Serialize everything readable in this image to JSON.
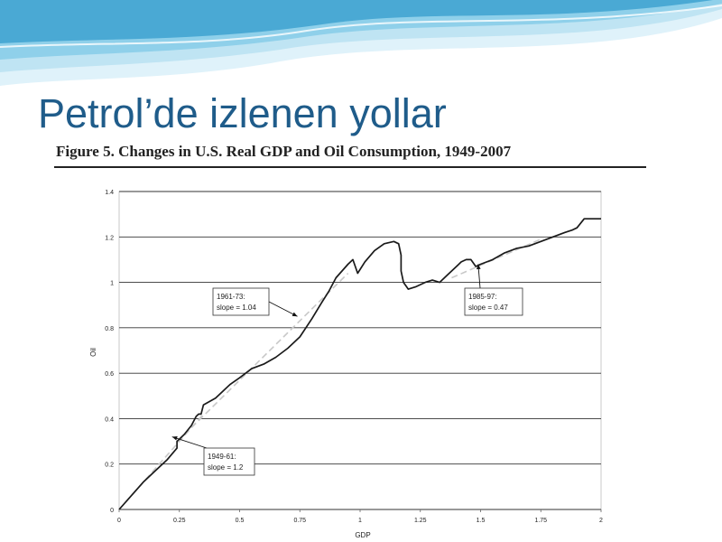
{
  "slide": {
    "title": "Petrol’de izlenen yollar"
  },
  "figure": {
    "caption": "Figure 5. Changes in U.S. Real GDP and Oil Consumption, 1949-2007"
  },
  "colors": {
    "title": "#1f5c8a",
    "wave_dark": "#4aa9d4",
    "wave_light": "#bfe4f3",
    "series": "#1a1a1a",
    "trend": "#c8c8c8",
    "grid": "#333333"
  },
  "chart_data": {
    "type": "line",
    "xlabel": "GDP",
    "ylabel": "Oil",
    "xlim": [
      0,
      2
    ],
    "ylim": [
      0,
      1.4
    ],
    "x_ticks": [
      "0",
      "0.25",
      "0.5",
      "0.75",
      "1",
      "1.25",
      "1.5",
      "1.75",
      "2"
    ],
    "y_ticks": [
      "0",
      "0.2",
      "0.4",
      "0.6",
      "0.8",
      "1",
      "1.2",
      "1.4"
    ],
    "grid": "horizontal",
    "series": [
      {
        "values": [
          [
            0,
            0
          ],
          [
            0.05,
            0.06
          ],
          [
            0.1,
            0.12
          ],
          [
            0.15,
            0.17
          ],
          [
            0.2,
            0.22
          ],
          [
            0.24,
            0.27
          ],
          [
            0.24,
            0.3
          ],
          [
            0.27,
            0.33
          ],
          [
            0.3,
            0.37
          ],
          [
            0.32,
            0.41
          ],
          [
            0.33,
            0.42
          ],
          [
            0.34,
            0.42
          ],
          [
            0.35,
            0.46
          ],
          [
            0.4,
            0.49
          ],
          [
            0.43,
            0.52
          ],
          [
            0.46,
            0.55
          ],
          [
            0.5,
            0.58
          ],
          [
            0.55,
            0.62
          ],
          [
            0.6,
            0.64
          ],
          [
            0.65,
            0.67
          ],
          [
            0.7,
            0.71
          ],
          [
            0.75,
            0.76
          ],
          [
            0.8,
            0.84
          ],
          [
            0.84,
            0.91
          ],
          [
            0.87,
            0.96
          ],
          [
            0.9,
            1.02
          ],
          [
            0.95,
            1.08
          ],
          [
            0.97,
            1.1
          ],
          [
            0.99,
            1.04
          ],
          [
            1.02,
            1.09
          ],
          [
            1.06,
            1.14
          ],
          [
            1.1,
            1.17
          ],
          [
            1.14,
            1.18
          ],
          [
            1.16,
            1.17
          ],
          [
            1.17,
            1.12
          ],
          [
            1.17,
            1.05
          ],
          [
            1.18,
            1.0
          ],
          [
            1.2,
            0.97
          ],
          [
            1.23,
            0.98
          ],
          [
            1.27,
            1.0
          ],
          [
            1.3,
            1.01
          ],
          [
            1.33,
            1.0
          ],
          [
            1.36,
            1.03
          ],
          [
            1.39,
            1.06
          ],
          [
            1.42,
            1.09
          ],
          [
            1.44,
            1.1
          ],
          [
            1.46,
            1.1
          ],
          [
            1.48,
            1.07
          ],
          [
            1.5,
            1.08
          ],
          [
            1.55,
            1.1
          ],
          [
            1.6,
            1.13
          ],
          [
            1.65,
            1.15
          ],
          [
            1.7,
            1.16
          ],
          [
            1.75,
            1.18
          ],
          [
            1.8,
            1.2
          ],
          [
            1.85,
            1.22
          ],
          [
            1.88,
            1.23
          ],
          [
            1.9,
            1.24
          ],
          [
            1.93,
            1.28
          ],
          [
            1.96,
            1.28
          ],
          [
            2.0,
            1.28
          ]
        ]
      }
    ],
    "trend_lines": [
      {
        "label": "1949-61:",
        "slope_text": "slope = 1.2",
        "from": [
          0,
          0
        ],
        "to": [
          0.35,
          0.42
        ]
      },
      {
        "label": "1961-73:",
        "slope_text": "slope = 1.04",
        "from": [
          0.3,
          0.36
        ],
        "to": [
          0.95,
          1.04
        ]
      },
      {
        "label": "1985-97:",
        "slope_text": "slope = 0.47",
        "from": [
          1.38,
          1.02
        ],
        "to": [
          1.75,
          1.19
        ]
      }
    ]
  }
}
